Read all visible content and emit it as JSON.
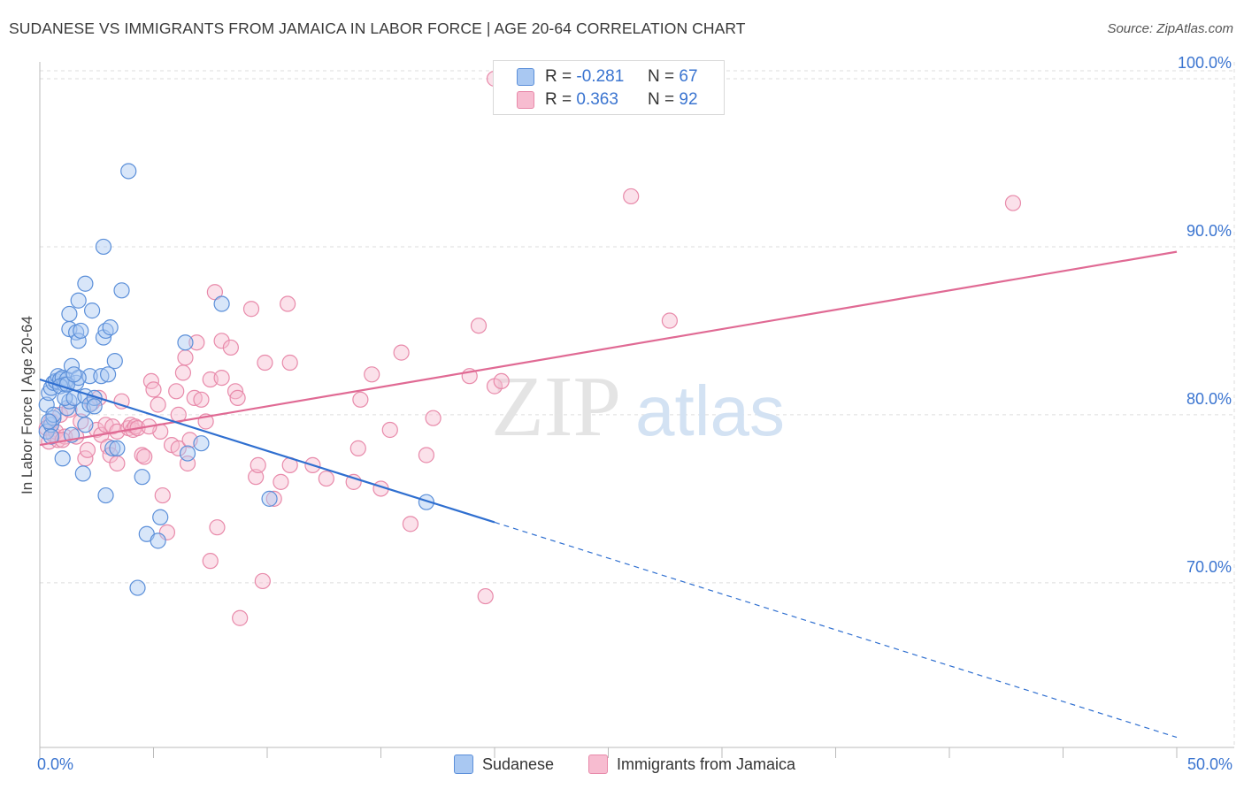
{
  "header": {
    "title": "SUDANESE VS IMMIGRANTS FROM JAMAICA IN LABOR FORCE | AGE 20-64 CORRELATION CHART",
    "source": "Source: ZipAtlas.com"
  },
  "watermark": {
    "zip": "ZIP",
    "atlas": "atlas"
  },
  "legend_top": [
    {
      "r_label": "R =",
      "r_value": "-0.281",
      "n_label": "N =",
      "n_value": "67"
    },
    {
      "r_label": "R =",
      "r_value": "0.363",
      "n_label": "N =",
      "n_value": "92"
    }
  ],
  "colors": {
    "sudanese_fill": "#a9c8f2",
    "sudanese_stroke": "#5b8fd9",
    "sudanese_line": "#2f6fd0",
    "jamaica_fill": "#f7bcd0",
    "jamaica_stroke": "#e88aaa",
    "jamaica_line": "#e06a94",
    "axis_label": "#3a74d0",
    "grid": "#dddddd"
  },
  "chart_data": {
    "type": "scatter",
    "title": "SUDANESE VS IMMIGRANTS FROM JAMAICA IN LABOR FORCE | AGE 20-64 CORRELATION CHART",
    "xlabel": "",
    "ylabel": "In Labor Force | Age 20-64",
    "xlim": [
      0,
      50
    ],
    "ylim": [
      60.2,
      101
    ],
    "x_tick_labels": [
      "0.0%",
      "50.0%"
    ],
    "y_ticks": [
      70,
      80,
      90,
      100
    ],
    "y_tick_labels": [
      "70.0%",
      "80.0%",
      "90.0%",
      "100.0%"
    ],
    "grid": true,
    "legend_position": "bottom",
    "series": [
      {
        "name": "Sudanese",
        "r": -0.281,
        "n": 67,
        "trend": {
          "x": [
            0,
            20
          ],
          "y": [
            82.1,
            73.6
          ]
        },
        "trend_dashed": {
          "x": [
            20,
            50
          ],
          "y": [
            73.6,
            60.8
          ]
        },
        "points": [
          [
            0.3,
            79.0
          ],
          [
            0.3,
            80.6
          ],
          [
            0.4,
            81.3
          ],
          [
            0.5,
            79.4
          ],
          [
            0.5,
            81.6
          ],
          [
            0.6,
            81.9
          ],
          [
            0.7,
            82.0
          ],
          [
            0.6,
            79.8
          ],
          [
            0.8,
            82.3
          ],
          [
            0.9,
            82.1
          ],
          [
            1.0,
            82.2
          ],
          [
            1.1,
            81.8
          ],
          [
            1.2,
            82.1
          ],
          [
            0.9,
            81.7
          ],
          [
            1.0,
            77.4
          ],
          [
            0.6,
            80.0
          ],
          [
            1.2,
            80.4
          ],
          [
            1.3,
            80.8
          ],
          [
            1.4,
            78.8
          ],
          [
            1.1,
            81.0
          ],
          [
            1.5,
            81.0
          ],
          [
            1.4,
            82.9
          ],
          [
            1.6,
            81.9
          ],
          [
            1.3,
            85.1
          ],
          [
            1.3,
            86.0
          ],
          [
            1.6,
            84.9
          ],
          [
            1.7,
            84.4
          ],
          [
            1.8,
            85.0
          ],
          [
            1.7,
            86.8
          ],
          [
            2.0,
            87.8
          ],
          [
            1.9,
            80.3
          ],
          [
            2.0,
            81.1
          ],
          [
            1.9,
            76.5
          ],
          [
            2.0,
            79.4
          ],
          [
            2.2,
            80.6
          ],
          [
            2.4,
            81.0
          ],
          [
            2.2,
            82.3
          ],
          [
            2.3,
            86.2
          ],
          [
            2.4,
            80.5
          ],
          [
            2.8,
            90.0
          ],
          [
            2.8,
            84.6
          ],
          [
            2.9,
            85.0
          ],
          [
            3.1,
            85.2
          ],
          [
            2.7,
            82.3
          ],
          [
            2.9,
            75.2
          ],
          [
            3.0,
            82.4
          ],
          [
            3.2,
            78.0
          ],
          [
            3.3,
            83.2
          ],
          [
            3.4,
            78.0
          ],
          [
            3.6,
            87.4
          ],
          [
            3.9,
            94.5
          ],
          [
            4.3,
            69.7
          ],
          [
            4.5,
            76.3
          ],
          [
            4.7,
            72.9
          ],
          [
            5.2,
            72.5
          ],
          [
            5.3,
            73.9
          ],
          [
            6.4,
            84.3
          ],
          [
            6.5,
            77.7
          ],
          [
            7.1,
            78.3
          ],
          [
            8.0,
            86.6
          ],
          [
            10.1,
            75.0
          ],
          [
            1.7,
            82.2
          ],
          [
            0.5,
            78.7
          ],
          [
            0.4,
            79.6
          ],
          [
            1.2,
            81.8
          ],
          [
            1.5,
            82.4
          ],
          [
            17.0,
            74.8
          ]
        ]
      },
      {
        "name": "Immigrants from Jamaica",
        "r": 0.363,
        "n": 92,
        "trend": {
          "x": [
            0,
            50
          ],
          "y": [
            78.2,
            89.7
          ]
        },
        "points": [
          [
            0.3,
            79.2
          ],
          [
            0.4,
            78.4
          ],
          [
            0.5,
            79.6
          ],
          [
            0.6,
            78.8
          ],
          [
            0.7,
            79.0
          ],
          [
            0.8,
            78.5
          ],
          [
            0.9,
            80.0
          ],
          [
            1.1,
            78.7
          ],
          [
            1.3,
            80.3
          ],
          [
            1.6,
            78.7
          ],
          [
            1.8,
            79.6
          ],
          [
            2.0,
            77.4
          ],
          [
            2.1,
            77.9
          ],
          [
            2.3,
            80.7
          ],
          [
            2.5,
            79.1
          ],
          [
            2.6,
            81.0
          ],
          [
            2.7,
            78.8
          ],
          [
            2.9,
            79.4
          ],
          [
            3.0,
            78.1
          ],
          [
            3.1,
            77.6
          ],
          [
            3.2,
            79.3
          ],
          [
            3.4,
            79.0
          ],
          [
            3.4,
            77.1
          ],
          [
            3.6,
            80.8
          ],
          [
            3.9,
            79.2
          ],
          [
            4.0,
            79.4
          ],
          [
            4.1,
            79.1
          ],
          [
            4.2,
            79.3
          ],
          [
            4.3,
            79.2
          ],
          [
            4.5,
            77.6
          ],
          [
            4.6,
            77.5
          ],
          [
            4.9,
            82.0
          ],
          [
            5.0,
            81.5
          ],
          [
            5.2,
            80.6
          ],
          [
            5.3,
            79.0
          ],
          [
            5.4,
            75.2
          ],
          [
            5.6,
            73.0
          ],
          [
            5.8,
            78.2
          ],
          [
            6.0,
            81.4
          ],
          [
            6.1,
            78.0
          ],
          [
            6.1,
            80.0
          ],
          [
            6.3,
            82.5
          ],
          [
            6.4,
            83.4
          ],
          [
            6.5,
            77.1
          ],
          [
            6.6,
            78.5
          ],
          [
            6.8,
            81.0
          ],
          [
            6.9,
            84.3
          ],
          [
            7.1,
            80.9
          ],
          [
            7.3,
            79.6
          ],
          [
            7.5,
            82.1
          ],
          [
            7.5,
            71.3
          ],
          [
            7.7,
            87.3
          ],
          [
            7.8,
            73.3
          ],
          [
            8.0,
            82.2
          ],
          [
            8.0,
            84.4
          ],
          [
            8.4,
            84.0
          ],
          [
            8.6,
            81.4
          ],
          [
            8.7,
            81.0
          ],
          [
            8.8,
            67.9
          ],
          [
            9.3,
            86.3
          ],
          [
            9.5,
            76.3
          ],
          [
            9.6,
            77.0
          ],
          [
            9.8,
            70.1
          ],
          [
            9.9,
            83.1
          ],
          [
            10.3,
            75.0
          ],
          [
            10.6,
            76.0
          ],
          [
            10.9,
            86.6
          ],
          [
            11.0,
            83.1
          ],
          [
            11.0,
            77.0
          ],
          [
            12.0,
            77.0
          ],
          [
            12.6,
            76.2
          ],
          [
            13.8,
            76.0
          ],
          [
            14.1,
            80.9
          ],
          [
            14.0,
            78.0
          ],
          [
            14.6,
            82.4
          ],
          [
            15.0,
            75.6
          ],
          [
            15.4,
            79.1
          ],
          [
            15.9,
            83.7
          ],
          [
            16.3,
            73.5
          ],
          [
            17.0,
            77.6
          ],
          [
            17.3,
            79.8
          ],
          [
            18.9,
            82.3
          ],
          [
            19.3,
            85.3
          ],
          [
            19.6,
            69.2
          ],
          [
            20.0,
            81.7
          ],
          [
            20.3,
            82.0
          ],
          [
            20.0,
            100.0
          ],
          [
            26.0,
            93.0
          ],
          [
            27.7,
            85.6
          ],
          [
            42.8,
            92.6
          ],
          [
            1.0,
            78.5
          ],
          [
            4.8,
            79.3
          ]
        ]
      }
    ]
  },
  "bottom_legend": [
    {
      "label": "Sudanese"
    },
    {
      "label": "Immigrants from Jamaica"
    }
  ]
}
